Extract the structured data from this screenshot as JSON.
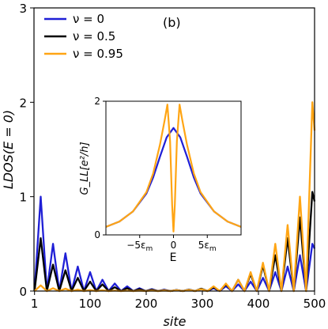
{
  "chart_data": [
    {
      "type": "line",
      "panel_label": "(b)",
      "xlabel": "site",
      "ylabel": "LDOS(E = 0)",
      "xlim": [
        0,
        500
      ],
      "ylim": [
        0,
        3
      ],
      "xticks": [
        1,
        100,
        200,
        300,
        400,
        500
      ],
      "yticks": [
        0,
        1,
        2,
        3
      ],
      "grid": false,
      "legend_position": "top-left",
      "series": [
        {
          "name": "ν = 0",
          "color": "#1f1fd6",
          "points": [
            [
              1,
              0
            ],
            [
              12,
              1.0
            ],
            [
              23,
              0
            ],
            [
              34,
              0.5
            ],
            [
              45,
              0
            ],
            [
              56,
              0.4
            ],
            [
              67,
              0
            ],
            [
              78,
              0.26
            ],
            [
              89,
              0
            ],
            [
              100,
              0.2
            ],
            [
              111,
              0
            ],
            [
              122,
              0.12
            ],
            [
              133,
              0
            ],
            [
              144,
              0.08
            ],
            [
              155,
              0
            ],
            [
              166,
              0.05
            ],
            [
              177,
              0
            ],
            [
              188,
              0.03
            ],
            [
              199,
              0
            ],
            [
              210,
              0.02
            ],
            [
              221,
              0
            ],
            [
              232,
              0.015
            ],
            [
              243,
              0
            ],
            [
              254,
              0.01
            ],
            [
              265,
              0
            ],
            [
              276,
              0.015
            ],
            [
              287,
              0
            ],
            [
              298,
              0.02
            ],
            [
              309,
              0
            ],
            [
              320,
              0.03
            ],
            [
              331,
              0
            ],
            [
              342,
              0.05
            ],
            [
              353,
              0
            ],
            [
              364,
              0.07
            ],
            [
              375,
              0
            ],
            [
              386,
              0.1
            ],
            [
              397,
              0
            ],
            [
              408,
              0.14
            ],
            [
              419,
              0
            ],
            [
              430,
              0.2
            ],
            [
              441,
              0
            ],
            [
              452,
              0.26
            ],
            [
              463,
              0
            ],
            [
              474,
              0.38
            ],
            [
              485,
              0
            ],
            [
              496,
              0.5
            ],
            [
              500,
              0.45
            ]
          ]
        },
        {
          "name": "ν = 0.5",
          "color": "#000000",
          "points": [
            [
              1,
              0
            ],
            [
              12,
              0.56
            ],
            [
              23,
              0
            ],
            [
              34,
              0.28
            ],
            [
              45,
              0
            ],
            [
              56,
              0.22
            ],
            [
              67,
              0
            ],
            [
              78,
              0.14
            ],
            [
              89,
              0
            ],
            [
              100,
              0.1
            ],
            [
              111,
              0
            ],
            [
              122,
              0.07
            ],
            [
              133,
              0
            ],
            [
              144,
              0.04
            ],
            [
              155,
              0
            ],
            [
              166,
              0.03
            ],
            [
              177,
              0
            ],
            [
              188,
              0.02
            ],
            [
              199,
              0
            ],
            [
              210,
              0.015
            ],
            [
              221,
              0
            ],
            [
              232,
              0.01
            ],
            [
              243,
              0
            ],
            [
              254,
              0.01
            ],
            [
              265,
              0
            ],
            [
              276,
              0.015
            ],
            [
              287,
              0
            ],
            [
              298,
              0.025
            ],
            [
              309,
              0
            ],
            [
              320,
              0.04
            ],
            [
              331,
              0
            ],
            [
              342,
              0.07
            ],
            [
              353,
              0
            ],
            [
              364,
              0.12
            ],
            [
              375,
              0
            ],
            [
              386,
              0.18
            ],
            [
              397,
              0
            ],
            [
              408,
              0.27
            ],
            [
              419,
              0
            ],
            [
              430,
              0.38
            ],
            [
              441,
              0
            ],
            [
              452,
              0.56
            ],
            [
              463,
              0
            ],
            [
              474,
              0.78
            ],
            [
              485,
              0
            ],
            [
              496,
              1.05
            ],
            [
              500,
              0.95
            ]
          ]
        },
        {
          "name": "ν = 0.95",
          "color": "#ffa514",
          "points": [
            [
              1,
              0
            ],
            [
              12,
              0.06
            ],
            [
              23,
              0
            ],
            [
              34,
              0.03
            ],
            [
              45,
              0
            ],
            [
              56,
              0.025
            ],
            [
              67,
              0
            ],
            [
              78,
              0.015
            ],
            [
              89,
              0
            ],
            [
              100,
              0.01
            ],
            [
              111,
              0
            ],
            [
              122,
              0.008
            ],
            [
              133,
              0
            ],
            [
              144,
              0.005
            ],
            [
              155,
              0
            ],
            [
              166,
              0.004
            ],
            [
              177,
              0
            ],
            [
              188,
              0.004
            ],
            [
              199,
              0
            ],
            [
              210,
              0.005
            ],
            [
              221,
              0
            ],
            [
              232,
              0.006
            ],
            [
              243,
              0
            ],
            [
              254,
              0.008
            ],
            [
              265,
              0
            ],
            [
              276,
              0.012
            ],
            [
              287,
              0
            ],
            [
              298,
              0.02
            ],
            [
              309,
              0
            ],
            [
              320,
              0.05
            ],
            [
              331,
              0
            ],
            [
              342,
              0.08
            ],
            [
              353,
              0
            ],
            [
              364,
              0.12
            ],
            [
              375,
              0
            ],
            [
              386,
              0.2
            ],
            [
              397,
              0
            ],
            [
              408,
              0.3
            ],
            [
              419,
              0
            ],
            [
              430,
              0.5
            ],
            [
              441,
              0
            ],
            [
              452,
              0.7
            ],
            [
              463,
              0
            ],
            [
              474,
              1.0
            ],
            [
              485,
              0
            ],
            [
              496,
              2.0
            ],
            [
              500,
              1.7
            ]
          ]
        }
      ]
    },
    {
      "type": "line",
      "xlabel": "E",
      "ylabel": "G_LL[e²/h]",
      "xlim": [
        -10,
        10
      ],
      "ylim": [
        0,
        2
      ],
      "xticks": [
        -5,
        0,
        5
      ],
      "xtick_labels": [
        "−5ε_m",
        "0",
        "5ε_m"
      ],
      "yticks": [
        0,
        2
      ],
      "series": [
        {
          "name": "ν = 0",
          "color": "#1f1fd6",
          "points": [
            [
              -10,
              0.12
            ],
            [
              -8,
              0.2
            ],
            [
              -6,
              0.35
            ],
            [
              -4,
              0.62
            ],
            [
              -3,
              0.86
            ],
            [
              -2,
              1.17
            ],
            [
              -1,
              1.46
            ],
            [
              0,
              1.6
            ],
            [
              1,
              1.46
            ],
            [
              2,
              1.17
            ],
            [
              3,
              0.86
            ],
            [
              4,
              0.62
            ],
            [
              6,
              0.35
            ],
            [
              8,
              0.2
            ],
            [
              10,
              0.12
            ]
          ]
        },
        {
          "name": "ν = 0.95",
          "color": "#ffa514",
          "points": [
            [
              -10,
              0.12
            ],
            [
              -8,
              0.2
            ],
            [
              -6,
              0.35
            ],
            [
              -4,
              0.64
            ],
            [
              -3,
              0.92
            ],
            [
              -2,
              1.35
            ],
            [
              -1.3,
              1.72
            ],
            [
              -0.9,
              1.95
            ],
            [
              -0.5,
              1.4
            ],
            [
              -0.2,
              0.45
            ],
            [
              0,
              0.05
            ],
            [
              0.2,
              0.45
            ],
            [
              0.5,
              1.4
            ],
            [
              0.9,
              1.95
            ],
            [
              1.3,
              1.72
            ],
            [
              2,
              1.35
            ],
            [
              3,
              0.92
            ],
            [
              4,
              0.64
            ],
            [
              6,
              0.35
            ],
            [
              8,
              0.2
            ],
            [
              10,
              0.12
            ]
          ]
        }
      ]
    }
  ]
}
